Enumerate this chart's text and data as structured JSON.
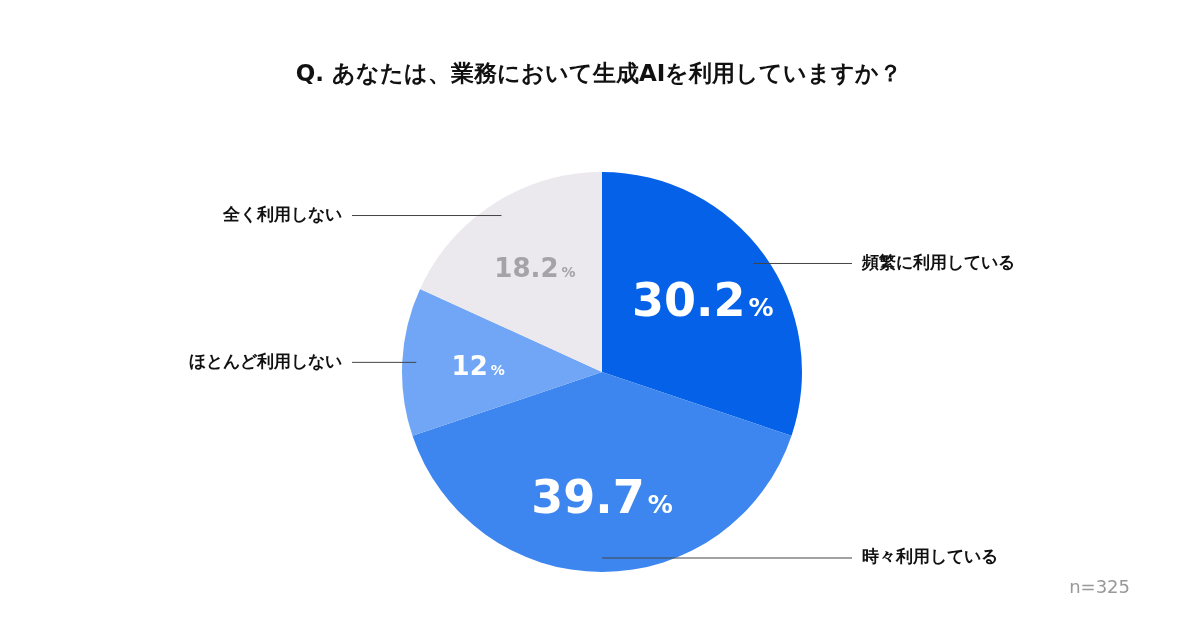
{
  "chart_data": {
    "type": "pie",
    "title": "Q. あなたは、業務において生成AIを利用していますか？",
    "categories": [
      "頻繁に利用している",
      "時々利用している",
      "ほとんど利用しない",
      "全く利用しない"
    ],
    "values": [
      30.2,
      39.7,
      12,
      18.2
    ],
    "value_labels": [
      "30.2%",
      "39.7%",
      "12%",
      "18.2%"
    ],
    "colors": [
      "#0561e8",
      "#3d86f0",
      "#70a6f5",
      "#ebe9ee"
    ],
    "legend": false,
    "annotations": [
      "n=325"
    ]
  }
}
